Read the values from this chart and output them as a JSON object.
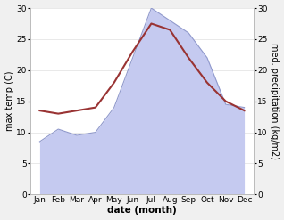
{
  "months": [
    "Jan",
    "Feb",
    "Mar",
    "Apr",
    "May",
    "Jun",
    "Jul",
    "Aug",
    "Sep",
    "Oct",
    "Nov",
    "Dec"
  ],
  "temp": [
    13.5,
    13.0,
    13.5,
    14.0,
    18.0,
    23.0,
    27.5,
    26.5,
    22.0,
    18.0,
    15.0,
    13.5
  ],
  "precip": [
    8.5,
    10.5,
    9.5,
    10.0,
    14.0,
    22.0,
    30.0,
    28.0,
    26.0,
    22.0,
    14.5,
    14.0
  ],
  "temp_color": "#993333",
  "precip_fill_color": "#c5caf0",
  "precip_line_color": "#9099cc",
  "ylim": [
    0,
    30
  ],
  "yticks": [
    0,
    5,
    10,
    15,
    20,
    25,
    30
  ],
  "ylabel_left": "max temp (C)",
  "ylabel_right": "med. precipitation (kg/m2)",
  "xlabel": "date (month)",
  "bg_color": "#f0f0f0",
  "plot_bg_color": "#ffffff",
  "grid_color": "#e0e0e0",
  "spine_color": "#bbbbbb",
  "title_fontsize": 8,
  "label_fontsize": 7,
  "tick_fontsize": 6.5,
  "xlabel_fontsize": 7.5
}
